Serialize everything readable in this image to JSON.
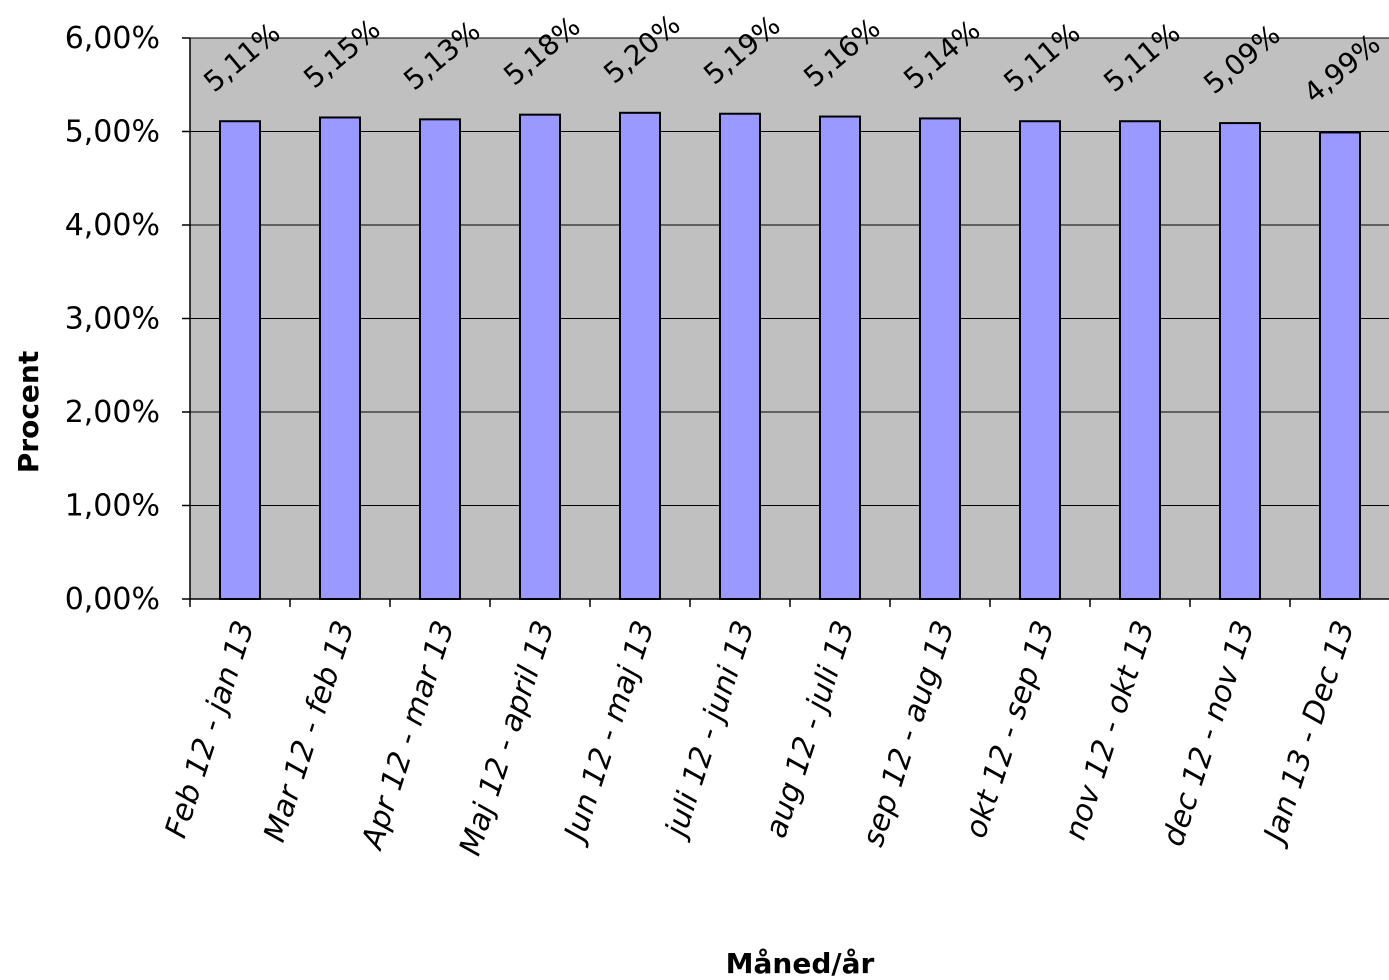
{
  "colors": {
    "plot_background": "#c0c0c0",
    "bar_fill": "#9999ff",
    "bar_stroke": "#000000",
    "gridline": "#000000"
  },
  "chart_data": {
    "type": "bar",
    "title": "",
    "xlabel": "Måned/år",
    "ylabel": "Procent",
    "ylim": [
      0,
      6
    ],
    "yticks": [
      0,
      1,
      2,
      3,
      4,
      5,
      6
    ],
    "ytick_labels": [
      "0,00%",
      "1,00%",
      "2,00%",
      "3,00%",
      "4,00%",
      "5,00%",
      "6,00%"
    ],
    "grid": true,
    "categories": [
      "Feb 12 - jan 13",
      "Mar 12 - feb 13",
      "Apr 12 - mar 13",
      "Maj 12 - april 13",
      "Jun 12 - maj 13",
      "juli 12 - juni 13",
      "aug 12 - juli 13",
      "sep 12 - aug 13",
      "okt 12 - sep 13",
      "nov 12 - okt 13",
      "dec 12 - nov 13",
      "Jan 13 - Dec 13"
    ],
    "values": [
      5.11,
      5.15,
      5.13,
      5.18,
      5.2,
      5.19,
      5.16,
      5.14,
      5.11,
      5.11,
      5.09,
      4.99
    ],
    "data_labels": [
      "5,11%",
      "5,15%",
      "5,13%",
      "5,18%",
      "5,20%",
      "5,19%",
      "5,16%",
      "5,14%",
      "5,11%",
      "5,11%",
      "5,09%",
      "4,99%"
    ]
  }
}
